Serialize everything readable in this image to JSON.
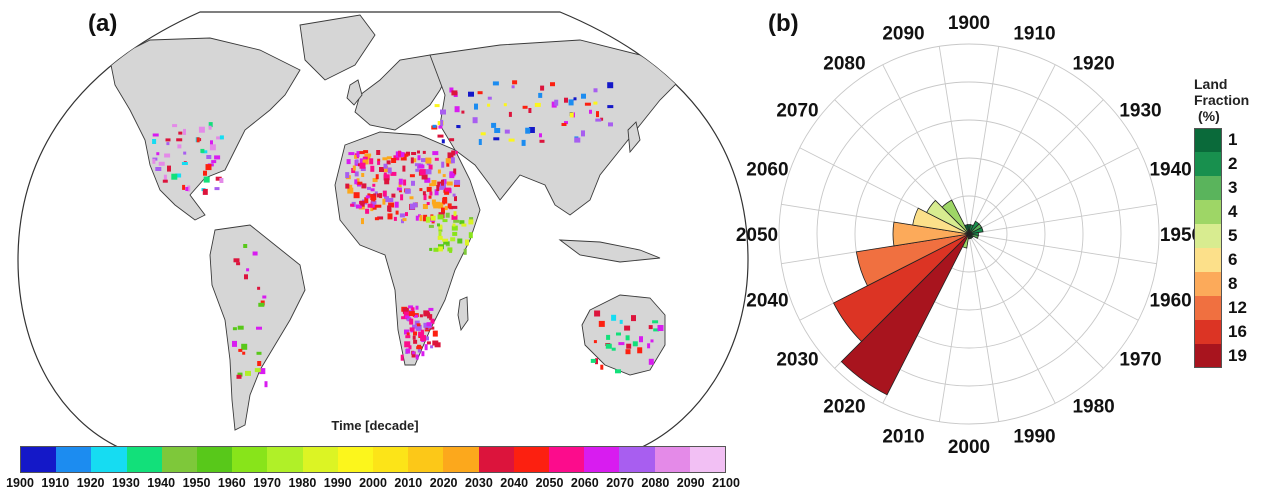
{
  "panel_a_label": "(a)",
  "panel_b_label": "(b)",
  "colorbar_title": "Time [decade]",
  "colors": {
    "land": "#d6d6d6",
    "coast": "#3a3a3a",
    "ocean": "#ffffff",
    "colorbar": [
      "#1418c8",
      "#1c8cf0",
      "#16dcf2",
      "#12e07a",
      "#7ec83a",
      "#58c81a",
      "#88e41a",
      "#b0f028",
      "#dcf424",
      "#fcf61c",
      "#fce418",
      "#fcc818",
      "#fca81c",
      "#dc143c",
      "#fc2010",
      "#fc0c8c",
      "#d81cf0",
      "#a85ef0",
      "#e48ae8",
      "#f2c0f4"
    ],
    "rose_legend": [
      "#0a6a3a",
      "#18904e",
      "#5ab45c",
      "#9ed666",
      "#d8ec90",
      "#fce08a",
      "#fcaa5a",
      "#f07040",
      "#dc3424",
      "#a8141e"
    ]
  },
  "chart_data": [
    {
      "type": "heatmap",
      "title": "(a)",
      "description_axis": "Time [decade]",
      "colorbar": {
        "label": "Time [decade]",
        "ticks": [
          1900,
          1910,
          1920,
          1930,
          1940,
          1950,
          1960,
          1970,
          1980,
          1990,
          2000,
          2010,
          2020,
          2030,
          2040,
          2050,
          2060,
          2070,
          2080,
          2090,
          2100
        ]
      }
    },
    {
      "type": "rose",
      "title": "(b)",
      "categories": [
        "1900",
        "1910",
        "1920",
        "1930",
        "1940",
        "1950",
        "1960",
        "1970",
        "1980",
        "1990",
        "2000",
        "2010",
        "2020",
        "2030",
        "2040",
        "2050",
        "2060",
        "2070",
        "2080",
        "2090"
      ],
      "values": [
        1,
        1,
        1.5,
        1.5,
        1.5,
        1,
        1,
        0.5,
        0.5,
        0.5,
        0.5,
        1.5,
        19,
        16,
        12,
        8,
        6,
        5,
        4,
        1
      ],
      "fill_levels": [
        1,
        2,
        2,
        3,
        2,
        2,
        3,
        1,
        1,
        1,
        3,
        4,
        19,
        16,
        12,
        8,
        6,
        5,
        4,
        1
      ],
      "rmax": 20,
      "legend": {
        "title_lines": [
          "Land",
          "Fraction",
          "(%)"
        ],
        "levels": [
          "1",
          "2",
          "3",
          "4",
          "5",
          "6",
          "8",
          "12",
          "16",
          "19"
        ]
      }
    }
  ]
}
